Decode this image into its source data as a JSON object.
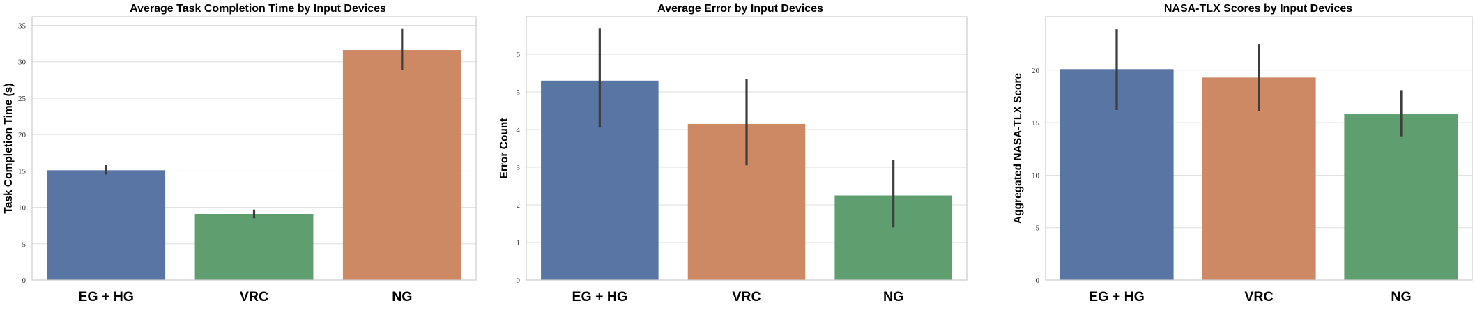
{
  "chart_data": [
    {
      "type": "bar",
      "title": "Average Task Completion Time by Input Devices",
      "xlabel": "",
      "ylabel": "Task Completion Time (s)",
      "categories": [
        "EG + HG",
        "VRC",
        "NG"
      ],
      "values": [
        15.1,
        9.1,
        31.6
      ],
      "error_low": [
        14.5,
        8.5,
        28.9
      ],
      "error_high": [
        15.8,
        9.7,
        34.6
      ],
      "colors": [
        "#5875a4",
        "#5f9e6e",
        "#cc8963"
      ],
      "ylim": [
        0,
        36.2
      ],
      "yticks": [
        0,
        5,
        10,
        15,
        20,
        25,
        30,
        35
      ],
      "grid": true
    },
    {
      "type": "bar",
      "title": "Average Error by Input Devices",
      "xlabel": "",
      "ylabel": "Error Count",
      "categories": [
        "EG + HG",
        "VRC",
        "NG"
      ],
      "values": [
        5.3,
        4.15,
        2.25
      ],
      "error_low": [
        4.05,
        3.05,
        1.4
      ],
      "error_high": [
        6.7,
        5.35,
        3.2
      ],
      "colors": [
        "#5875a4",
        "#cc8963",
        "#5f9e6e"
      ],
      "ylim": [
        0,
        7.0
      ],
      "yticks": [
        0,
        1,
        2,
        3,
        4,
        5,
        6
      ],
      "grid": true
    },
    {
      "type": "bar",
      "title": "NASA-TLX Scores by Input Devices",
      "xlabel": "",
      "ylabel": "Aggregated NASA-TLX Score",
      "categories": [
        "EG + HG",
        "VRC",
        "NG"
      ],
      "values": [
        20.1,
        19.3,
        15.8
      ],
      "error_low": [
        16.2,
        16.1,
        13.7
      ],
      "error_high": [
        23.9,
        22.5,
        18.1
      ],
      "colors": [
        "#5875a4",
        "#cc8963",
        "#5f9e6e"
      ],
      "ylim": [
        0,
        25.1
      ],
      "yticks": [
        0,
        5,
        10,
        15,
        20
      ],
      "grid": true
    }
  ]
}
